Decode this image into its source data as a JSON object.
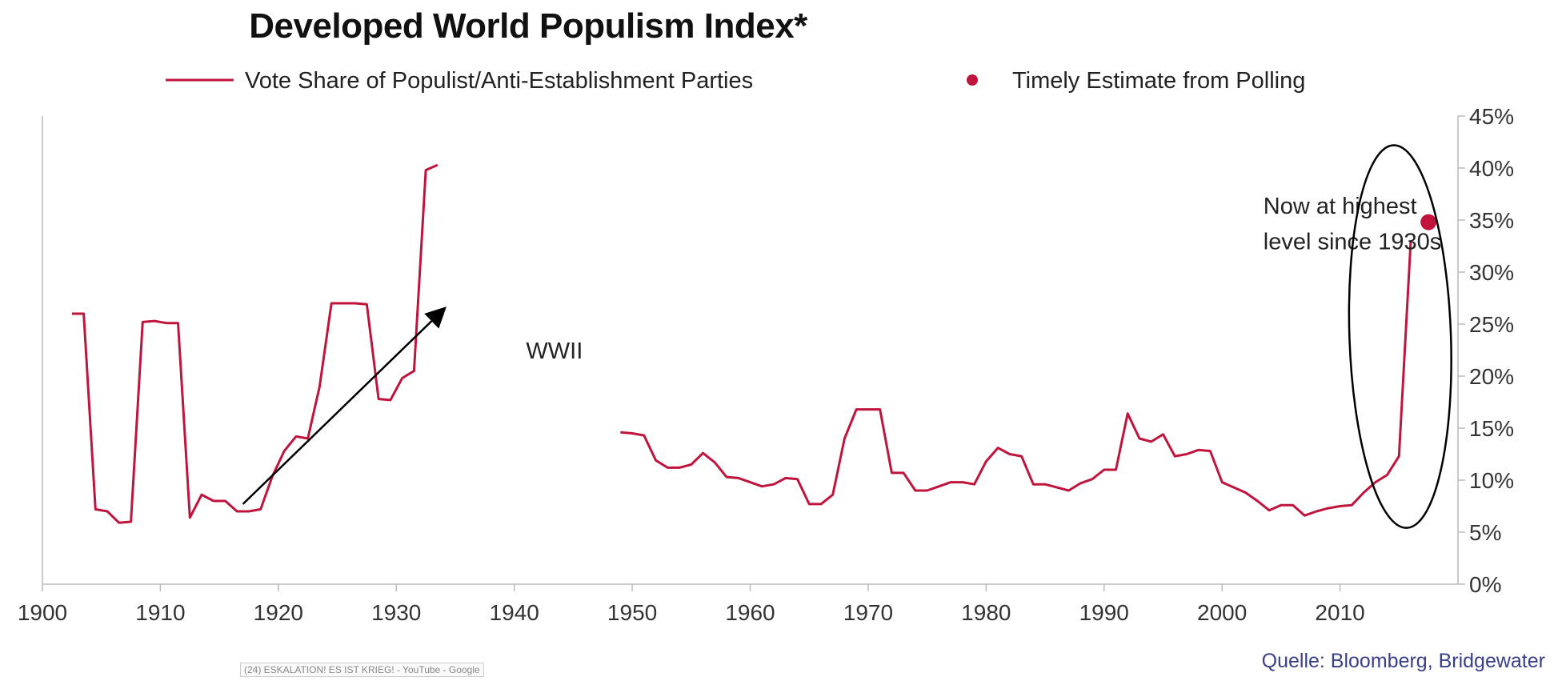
{
  "title": "Developed World Populism Index*",
  "source": "Quelle: Bloomberg, Bridgewater",
  "overlay_tab": "(24) ESKALATION! ES IST KRIEG! - YouTube - Google",
  "colors": {
    "line": "#c0143c",
    "dot": "#c0143c",
    "axis": "#bbbbbb",
    "text": "#333333"
  },
  "chart_data": {
    "type": "line",
    "title": "Developed World Populism Index*",
    "xlabel": "",
    "ylabel": "",
    "xlim": [
      1900,
      2020
    ],
    "ylim": [
      0,
      45
    ],
    "x_ticks": [
      1900,
      1910,
      1920,
      1930,
      1940,
      1950,
      1960,
      1970,
      1980,
      1990,
      2000,
      2010
    ],
    "y_ticks": [
      0,
      5,
      10,
      15,
      20,
      25,
      30,
      35,
      40,
      45
    ],
    "y_tick_labels": [
      "0%",
      "5%",
      "10%",
      "15%",
      "20%",
      "25%",
      "30%",
      "35%",
      "40%",
      "45%"
    ],
    "y_axis_side": "right",
    "legend": [
      {
        "label": "Vote Share of Populist/Anti-Establishment Parties",
        "type": "line"
      },
      {
        "label": "Timely Estimate from Polling",
        "type": "dot"
      }
    ],
    "series": [
      {
        "name": "Vote Share of Populist/Anti-Establishment Parties",
        "segments": [
          [
            [
              1902.5,
              26
            ],
            [
              1903.5,
              26
            ],
            [
              1904.5,
              7.2
            ],
            [
              1905.5,
              7
            ],
            [
              1906.5,
              5.9
            ],
            [
              1907.5,
              6
            ],
            [
              1908.5,
              25.2
            ],
            [
              1909.5,
              25.3
            ],
            [
              1910.5,
              25.1
            ],
            [
              1911.5,
              25.1
            ],
            [
              1912.5,
              6.4
            ],
            [
              1913.5,
              8.6
            ],
            [
              1914.5,
              8
            ],
            [
              1915.5,
              8
            ],
            [
              1916.5,
              7
            ],
            [
              1917.5,
              7
            ],
            [
              1918.5,
              7.2
            ],
            [
              1919.5,
              10.4
            ],
            [
              1920.5,
              12.8
            ],
            [
              1921.5,
              14.2
            ],
            [
              1922.5,
              14
            ],
            [
              1923.5,
              19
            ],
            [
              1924.5,
              27
            ],
            [
              1925.5,
              27
            ],
            [
              1926.5,
              27
            ],
            [
              1927.5,
              26.9
            ],
            [
              1928.5,
              17.8
            ],
            [
              1929.5,
              17.7
            ],
            [
              1930.5,
              19.8
            ],
            [
              1931.5,
              20.5
            ],
            [
              1932.5,
              39.8
            ],
            [
              1933.5,
              40.3
            ]
          ],
          [
            [
              1949,
              14.6
            ],
            [
              1950,
              14.5
            ],
            [
              1951,
              14.3
            ],
            [
              1952,
              11.9
            ],
            [
              1953,
              11.2
            ],
            [
              1954,
              11.2
            ],
            [
              1955,
              11.5
            ],
            [
              1956,
              12.6
            ],
            [
              1957,
              11.7
            ],
            [
              1958,
              10.3
            ],
            [
              1959,
              10.2
            ],
            [
              1960,
              9.8
            ],
            [
              1961,
              9.4
            ],
            [
              1962,
              9.6
            ],
            [
              1963,
              10.2
            ],
            [
              1964,
              10.1
            ],
            [
              1965,
              7.7
            ],
            [
              1966,
              7.7
            ],
            [
              1967,
              8.6
            ],
            [
              1968,
              14
            ],
            [
              1969,
              16.8
            ],
            [
              1970,
              16.8
            ],
            [
              1971,
              16.8
            ],
            [
              1972,
              10.7
            ],
            [
              1973,
              10.7
            ],
            [
              1974,
              9
            ],
            [
              1975,
              9
            ],
            [
              1976,
              9.4
            ],
            [
              1977,
              9.8
            ],
            [
              1978,
              9.8
            ],
            [
              1979,
              9.6
            ],
            [
              1980,
              11.8
            ],
            [
              1981,
              13.1
            ],
            [
              1982,
              12.5
            ],
            [
              1983,
              12.3
            ],
            [
              1984,
              9.6
            ],
            [
              1985,
              9.6
            ],
            [
              1986,
              9.3
            ],
            [
              1987,
              9
            ],
            [
              1988,
              9.7
            ],
            [
              1989,
              10.1
            ],
            [
              1990,
              11
            ],
            [
              1991,
              11
            ],
            [
              1992,
              16.4
            ],
            [
              1993,
              14
            ],
            [
              1994,
              13.7
            ],
            [
              1995,
              14.4
            ],
            [
              1996,
              12.3
            ],
            [
              1997,
              12.5
            ],
            [
              1998,
              12.9
            ],
            [
              1999,
              12.8
            ],
            [
              2000,
              9.8
            ],
            [
              2001,
              9.3
            ],
            [
              2002,
              8.8
            ],
            [
              2003,
              8
            ],
            [
              2004,
              7.1
            ],
            [
              2005,
              7.6
            ],
            [
              2006,
              7.6
            ],
            [
              2007,
              6.6
            ],
            [
              2008,
              7
            ],
            [
              2009,
              7.3
            ],
            [
              2010,
              7.5
            ],
            [
              2011,
              7.6
            ],
            [
              2012,
              8.8
            ],
            [
              2013,
              9.8
            ],
            [
              2014,
              10.5
            ],
            [
              2015,
              12.3
            ],
            [
              2016,
              33
            ]
          ]
        ]
      },
      {
        "name": "Timely Estimate from Polling",
        "points": [
          [
            2017.5,
            34.8
          ]
        ]
      }
    ],
    "annotations": [
      {
        "text": "WWII",
        "x": 1941,
        "y": 21.7
      },
      {
        "text": "Now at highest",
        "x": 2003.5,
        "y": 35.6
      },
      {
        "text": "level since 1930s",
        "x": 2003.5,
        "y": 32.2
      },
      {
        "type": "arrow",
        "from": [
          1917,
          7.7
        ],
        "to": [
          1934,
          26.4
        ]
      },
      {
        "type": "ellipse",
        "center": [
          2015.1,
          23.8
        ],
        "rx_years": 4.3,
        "ry": 18.4
      }
    ]
  }
}
